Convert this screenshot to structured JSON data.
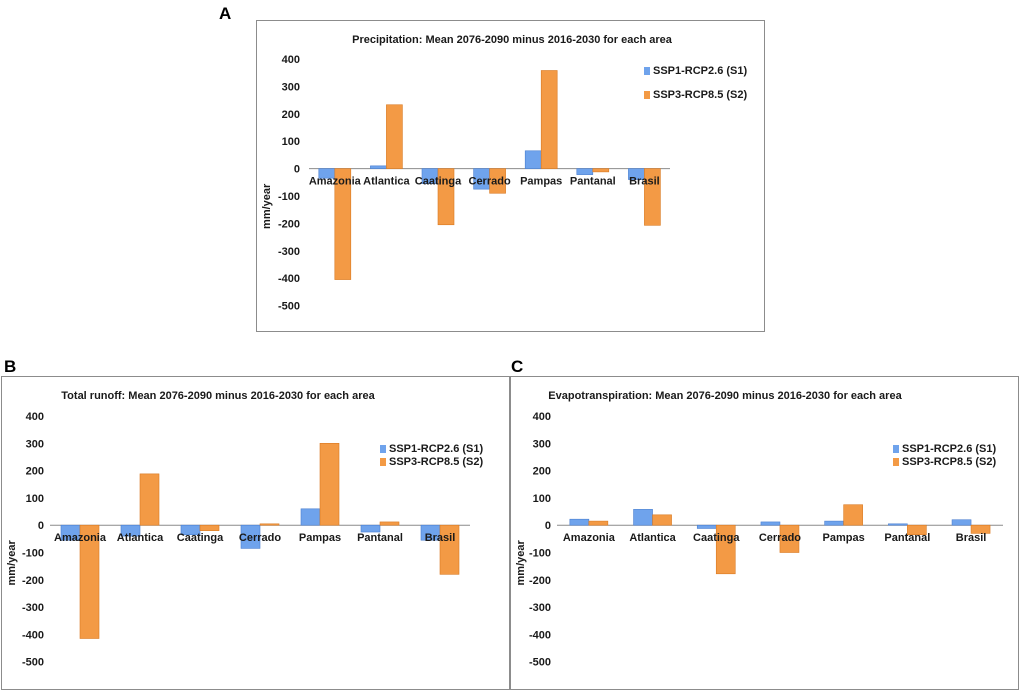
{
  "panels": {
    "a": "A",
    "b": "B",
    "c": "C"
  },
  "colors": {
    "s1": "#6fa3ec",
    "s1_stroke": "#4a7fd0",
    "s2": "#f39a45",
    "s2_stroke": "#d97a22",
    "axis": "#8c8c8c"
  },
  "chart_data": [
    {
      "id": "A",
      "type": "bar",
      "title": "Precipitation: Mean 2076-2090 minus 2016-2030 for each area",
      "xlabel": "",
      "ylabel": "mm/year",
      "ylim": [
        -500,
        400
      ],
      "yticks": [
        400,
        300,
        200,
        100,
        0,
        -100,
        -200,
        -300,
        -400,
        -500
      ],
      "categories": [
        "Amazonia",
        "Atlantica",
        "Caatinga",
        "Cerrado",
        "Pampas",
        "Pantanal",
        "Brasil"
      ],
      "series": [
        {
          "name": "SSP1-RCP2.6 (S1)",
          "values": [
            -35,
            10,
            -55,
            -75,
            65,
            -22,
            -40
          ]
        },
        {
          "name": "SSP3-RCP8.5 (S2)",
          "values": [
            -405,
            233,
            -205,
            -90,
            358,
            -12,
            -207
          ]
        }
      ],
      "legend": "right"
    },
    {
      "id": "B",
      "type": "bar",
      "title": "Total runoff: Mean 2076-2090 minus 2016-2030 for each area",
      "xlabel": "",
      "ylabel": "mm/year",
      "ylim": [
        -500,
        400
      ],
      "yticks": [
        400,
        300,
        200,
        100,
        0,
        -100,
        -200,
        -300,
        -400,
        -500
      ],
      "categories": [
        "Amazonia",
        "Atlantica",
        "Caatinga",
        "Cerrado",
        "Pampas",
        "Pantanal",
        "Brasil"
      ],
      "series": [
        {
          "name": "SSP1-RCP2.6 (S1)",
          "values": [
            -55,
            -40,
            -35,
            -85,
            60,
            -25,
            -55
          ]
        },
        {
          "name": "SSP3-RCP8.5 (S2)",
          "values": [
            -415,
            188,
            -20,
            5,
            300,
            12,
            -180
          ]
        }
      ],
      "legend": "right"
    },
    {
      "id": "C",
      "type": "bar",
      "title": "Evapotranspiration: Mean 2076-2090 minus 2016-2030 for each area",
      "xlabel": "",
      "ylabel": "mm/year",
      "ylim": [
        -500,
        400
      ],
      "yticks": [
        400,
        300,
        200,
        100,
        0,
        -100,
        -200,
        -300,
        -400,
        -500
      ],
      "categories": [
        "Amazonia",
        "Atlantica",
        "Caatinga",
        "Cerrado",
        "Pampas",
        "Pantanal",
        "Brasil"
      ],
      "series": [
        {
          "name": "SSP1-RCP2.6 (S1)",
          "values": [
            22,
            58,
            -12,
            12,
            15,
            5,
            20
          ]
        },
        {
          "name": "SSP3-RCP8.5 (S2)",
          "values": [
            15,
            38,
            -178,
            -100,
            75,
            -35,
            -30
          ]
        }
      ],
      "legend": "right"
    }
  ]
}
